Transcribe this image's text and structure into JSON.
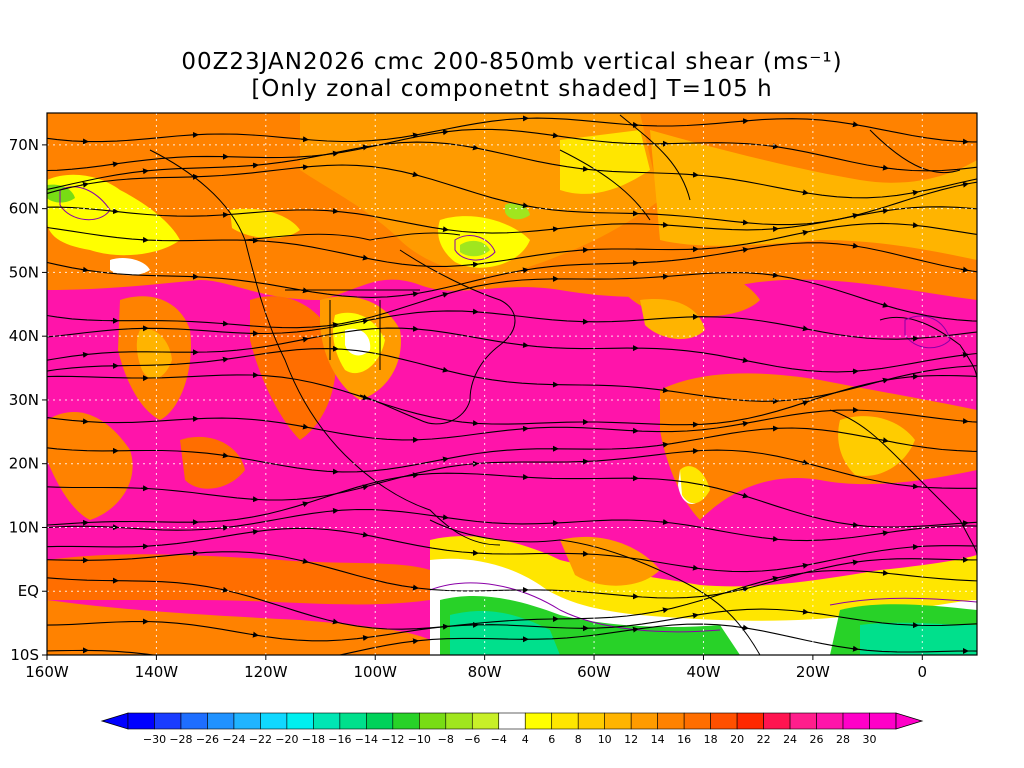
{
  "title": {
    "line1": "00Z23JAN2026 cmc 200-850mb vertical shear (ms⁻¹)",
    "line2": "[Only zonal componetnt shaded] T=105 h"
  },
  "map": {
    "lon_range": [
      -160,
      10
    ],
    "lat_range": [
      -10,
      75
    ],
    "lat_labels": [
      "70N",
      "60N",
      "50N",
      "40N",
      "30N",
      "20N",
      "10N",
      "EQ",
      "10S"
    ],
    "lat_values": [
      70,
      60,
      50,
      40,
      30,
      20,
      10,
      0,
      -10
    ],
    "lon_labels": [
      "160W",
      "140W",
      "120W",
      "100W",
      "80W",
      "60W",
      "40W",
      "20W",
      "0"
    ],
    "lon_values": [
      -160,
      -140,
      -120,
      -100,
      -80,
      -60,
      -40,
      -20,
      0
    ],
    "grid": true,
    "streamlines": true
  },
  "colorbar": {
    "labels": [
      "-30",
      "-28",
      "-26",
      "-24",
      "-22",
      "-20",
      "-18",
      "-16",
      "-14",
      "-12",
      "-10",
      "-8",
      "-6",
      "-4",
      "4",
      "6",
      "8",
      "10",
      "12",
      "14",
      "16",
      "18",
      "20",
      "22",
      "24",
      "26",
      "28",
      "30"
    ],
    "colors": [
      "#0000ff",
      "#1a3cff",
      "#1e6eff",
      "#2092ff",
      "#20b4ff",
      "#10d8ff",
      "#00f0f0",
      "#00e6b4",
      "#00e08c",
      "#00d25a",
      "#28d228",
      "#78dc14",
      "#a0e61e",
      "#c8f028",
      "#ffffff",
      "#ffff00",
      "#ffe600",
      "#ffcc00",
      "#ffb400",
      "#ff9b00",
      "#ff8200",
      "#ff6e00",
      "#ff5000",
      "#ff2800",
      "#ff1450",
      "#ff1e8c",
      "#ff14aa",
      "#ff00c8",
      "#ff00c8"
    ]
  }
}
